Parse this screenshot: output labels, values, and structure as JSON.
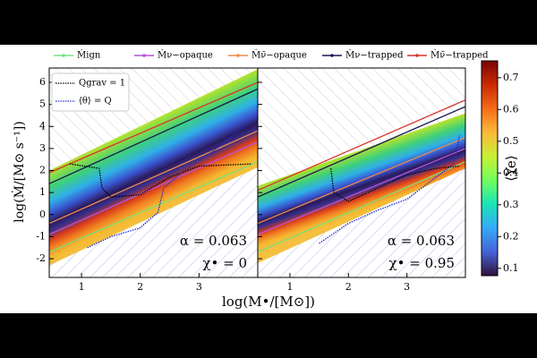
{
  "chart_data": {
    "type": "line",
    "xlabel": "log(M•/[M⊙])",
    "ylabel": "log(Ṁ/[M⊙ s⁻¹])",
    "xlim": [
      0.45,
      4.0
    ],
    "ylim": [
      -2.85,
      6.65
    ],
    "xticks": [
      1,
      2,
      3
    ],
    "yticks": [
      -2,
      -1,
      0,
      1,
      2,
      3,
      4,
      5,
      6
    ],
    "series": [
      {
        "name": "Ṁign",
        "color": "#7be07b"
      },
      {
        "name": "Ṁν−opaque",
        "color": "#b455d8"
      },
      {
        "name": "Ṁν̄−opaque",
        "color": "#f08a4b"
      },
      {
        "name": "Ṁν−trapped",
        "color": "#1a1a4e"
      },
      {
        "name": "Ṁν̄−trapped",
        "color": "#d8342a"
      }
    ],
    "curves": [
      {
        "name": "Qgrav = 1",
        "color": "#000000"
      },
      {
        "name": "⟨θ⟩ = Q",
        "color": "#1f2fd0"
      }
    ],
    "panels": [
      {
        "annotation": [
          "α = 0.063",
          "χ• = 0"
        ],
        "lines": [
          {
            "x": [
              0.45,
              4.0
            ],
            "y": [
              -1.7,
              2.4
            ]
          },
          {
            "x": [
              0.45,
              4.0
            ],
            "y": [
              -0.9,
              3.3
            ]
          },
          {
            "x": [
              0.45,
              4.0
            ],
            "y": [
              -0.4,
              3.8
            ]
          },
          {
            "x": [
              0.45,
              4.0
            ],
            "y": [
              1.4,
              5.7
            ]
          },
          {
            "x": [
              0.45,
              4.0
            ],
            "y": [
              1.9,
              6.0
            ]
          }
        ],
        "curves": [
          {
            "x": [
              0.8,
              1.3,
              1.35,
              1.5,
              2.0,
              2.5,
              3.0,
              3.9
            ],
            "y": [
              2.3,
              2.1,
              1.2,
              0.8,
              0.9,
              1.7,
              2.2,
              2.3
            ]
          },
          {
            "x": [
              1.1,
              1.5,
              2.0,
              2.3,
              2.4,
              2.7,
              3.3,
              3.9
            ],
            "y": [
              -1.5,
              -1.0,
              -0.6,
              0.1,
              1.2,
              1.9,
              3.0,
              4.3
            ]
          }
        ]
      },
      {
        "annotation": [
          "α = 0.063",
          "χ• = 0.95"
        ],
        "lines": [
          {
            "x": [
              0.45,
              4.0
            ],
            "y": [
              -1.7,
              2.4
            ]
          },
          {
            "x": [
              0.45,
              4.0
            ],
            "y": [
              -0.9,
              3.0
            ]
          },
          {
            "x": [
              0.45,
              4.0
            ],
            "y": [
              -0.4,
              3.5
            ]
          },
          {
            "x": [
              0.45,
              4.0
            ],
            "y": [
              0.8,
              4.9
            ]
          },
          {
            "x": [
              0.45,
              4.0
            ],
            "y": [
              1.1,
              5.2
            ]
          }
        ],
        "curves": [
          {
            "x": [
              1.7,
              1.75,
              2.0,
              2.5,
              3.0,
              3.5,
              3.9
            ],
            "y": [
              2.1,
              1.0,
              0.6,
              1.2,
              1.8,
              2.1,
              2.2
            ]
          },
          {
            "x": [
              1.5,
              2.0,
              2.5,
              3.0,
              3.5,
              3.8,
              3.9
            ],
            "y": [
              -1.3,
              -0.4,
              0.2,
              0.7,
              1.7,
              2.3,
              3.6
            ]
          }
        ]
      }
    ],
    "colorbar": {
      "label": "⟨Ye⟩",
      "lim": [
        0.077,
        0.753
      ],
      "ticks": [
        0.1,
        0.2,
        0.3,
        0.4,
        0.5,
        0.6,
        0.7
      ],
      "colors": [
        "#30123b",
        "#4662d7",
        "#36aaf9",
        "#1ae4b6",
        "#72fe5e",
        "#c8ef34",
        "#faba39",
        "#f66b19",
        "#ca2a04",
        "#7a0403"
      ]
    }
  }
}
